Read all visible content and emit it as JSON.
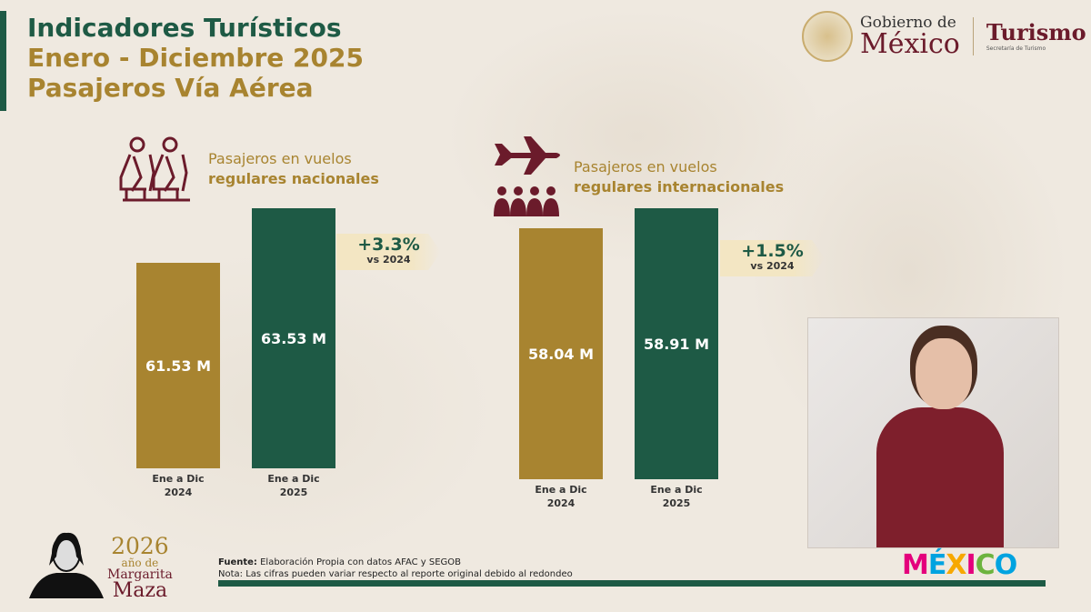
{
  "header": {
    "title": "Indicadores Turísticos",
    "period": "Enero - Diciembre 2025",
    "subtitle": "Pasajeros Vía Aérea"
  },
  "logo": {
    "line1": "Gobierno de",
    "line2": "México",
    "dept": "Turismo",
    "dept_sub": "Secretaría de Turismo"
  },
  "colors": {
    "gold": "#a88430",
    "green": "#1e5a45",
    "maroon": "#6b1b2b"
  },
  "chart_data": [
    {
      "type": "bar",
      "title_line1": "Pasajeros en vuelos",
      "title_line2": "regulares nacionales",
      "icon": "seated-passengers-icon",
      "categories": [
        "Ene a Dic 2024",
        "Ene a Dic 2025"
      ],
      "category_lines": [
        [
          "Ene a Dic",
          "2024"
        ],
        [
          "Ene a Dic",
          "2025"
        ]
      ],
      "values": [
        61.53,
        63.53
      ],
      "labels": [
        "61.53 M",
        "63.53 M"
      ],
      "colors": [
        "#a88430",
        "#1e5a45"
      ],
      "ylim": [
        54,
        64
      ],
      "change": "+3.3%",
      "change_ref": "vs 2024"
    },
    {
      "type": "bar",
      "title_line1": "Pasajeros en vuelos",
      "title_line2": "regulares internacionales",
      "icon": "airplane-group-icon",
      "categories": [
        "Ene a Dic 2024",
        "Ene a Dic 2025"
      ],
      "category_lines": [
        [
          "Ene a Dic",
          "2024"
        ],
        [
          "Ene a Dic",
          "2025"
        ]
      ],
      "values": [
        58.04,
        58.91
      ],
      "labels": [
        "58.04 M",
        "58.91 M"
      ],
      "colors": [
        "#a88430",
        "#1e5a45"
      ],
      "ylim": [
        47,
        59
      ],
      "change": "+1.5%",
      "change_ref": "vs 2024"
    }
  ],
  "footer": {
    "source_label": "Fuente:",
    "source": " Elaboración Propia con datos AFAC y SEGOB",
    "note": "Nota: Las cifras pueden variar respecto al reporte original debido al redondeo",
    "year": "2026",
    "year_sub": "año de",
    "name1": "Margarita",
    "name2": "Maza",
    "brand": "MÉXICO"
  }
}
